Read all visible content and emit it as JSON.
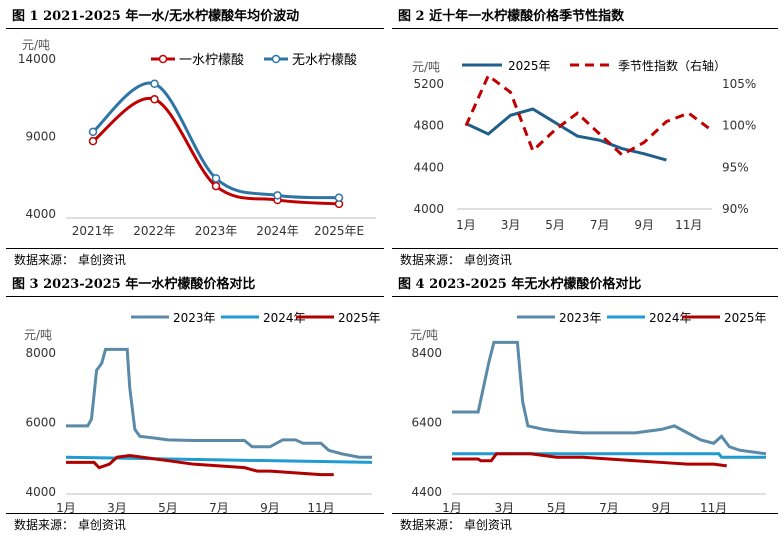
{
  "panels": [
    {
      "title": "图 1  2021-2025 年一水/无水柠檬酸年均价波动",
      "source": "数据来源：  卓创资讯"
    },
    {
      "title": "图 2  近十年一水柠檬酸价格季节性指数",
      "source": "数据来源：  卓创资讯"
    },
    {
      "title": "图 3  2023-2025 年一水柠檬酸价格对比",
      "source": "数据来源：  卓创资讯"
    },
    {
      "title": "图 4  2023-2025 年无水柠檬酸价格对比",
      "source": "数据来源：  卓创资讯"
    }
  ],
  "colors": {
    "red": "#c00000",
    "blue": "#2e75a6",
    "steel": "#5b8aa8",
    "cyan": "#1f9bd1",
    "dred": "#b00000"
  },
  "chart_data": [
    {
      "type": "line",
      "unit_label": "元/吨",
      "categories": [
        "2021年",
        "2022年",
        "2023年",
        "2024年",
        "2025年E"
      ],
      "series": [
        {
          "name": "一水柠檬酸",
          "values": [
            8700,
            11400,
            5800,
            4900,
            4650
          ],
          "color": "#c00000"
        },
        {
          "name": "无水柠檬酸",
          "values": [
            9300,
            12400,
            6300,
            5200,
            5050
          ],
          "color": "#2e75a6"
        }
      ],
      "yticks": [
        4000,
        9000,
        14000
      ],
      "ytick_labels": [
        "4000",
        "9000",
        "14000"
      ],
      "ylim": [
        4000,
        14000
      ],
      "legend": "top-right"
    },
    {
      "type": "line",
      "unit_label": "元/吨",
      "categories": [
        "1月",
        "2月",
        "3月",
        "4月",
        "5月",
        "6月",
        "7月",
        "8月",
        "9月",
        "10月",
        "11月",
        "12月"
      ],
      "xtick_labels": [
        "1月",
        "3月",
        "5月",
        "7月",
        "9月",
        "11月"
      ],
      "series": [
        {
          "name": "2025年",
          "axis": "left",
          "values": [
            4820,
            4720,
            4900,
            4960,
            4830,
            4700,
            4660,
            4580,
            4530,
            4470,
            null,
            null
          ],
          "color": "#1f5f8b"
        },
        {
          "name": "季节性指数（右轴）",
          "axis": "right",
          "values": [
            100,
            106,
            104,
            97,
            99.5,
            101.5,
            99,
            96.5,
            98,
            100.5,
            101.5,
            99.5
          ],
          "color": "#c00000",
          "dash": true
        }
      ],
      "yticks_left": [
        4000,
        4400,
        4800,
        5200
      ],
      "yticks_right": [
        90,
        95,
        100,
        105
      ],
      "ytick_right_labels": [
        "90%",
        "95%",
        "100%",
        "105%"
      ],
      "ylim_left": [
        4000,
        5200
      ],
      "ylim_right": [
        90,
        105
      ],
      "legend": "top"
    },
    {
      "type": "line",
      "unit_label": "元/吨",
      "xtick_labels": [
        "1月",
        "3月",
        "5月",
        "7月",
        "9月",
        "11月"
      ],
      "series": [
        {
          "name": "2023年",
          "color": "#5b8aa8",
          "values": [
            [
              1,
              5900
            ],
            [
              1.85,
              5900
            ],
            [
              2,
              6100
            ],
            [
              2.1,
              6800
            ],
            [
              2.2,
              7500
            ],
            [
              2.4,
              7700
            ],
            [
              2.55,
              8100
            ],
            [
              3.4,
              8100
            ],
            [
              3.5,
              7000
            ],
            [
              3.7,
              5800
            ],
            [
              3.9,
              5600
            ],
            [
              4.5,
              5550
            ],
            [
              5,
              5500
            ],
            [
              6,
              5480
            ],
            [
              7,
              5480
            ],
            [
              8,
              5480
            ],
            [
              8.3,
              5300
            ],
            [
              9,
              5300
            ],
            [
              9.5,
              5500
            ],
            [
              10,
              5500
            ],
            [
              10.3,
              5400
            ],
            [
              11,
              5400
            ],
            [
              11.3,
              5200
            ],
            [
              11.8,
              5100
            ],
            [
              12.5,
              5000
            ],
            [
              13,
              5000
            ]
          ]
        },
        {
          "name": "2024年",
          "color": "#1f9bd1",
          "values": [
            [
              1,
              5000
            ],
            [
              13,
              4850
            ]
          ]
        },
        {
          "name": "2025年",
          "color": "#b00000",
          "values": [
            [
              1,
              4850
            ],
            [
              2.1,
              4850
            ],
            [
              2.3,
              4700
            ],
            [
              2.7,
              4800
            ],
            [
              3,
              5000
            ],
            [
              3.5,
              5050
            ],
            [
              4,
              5000
            ],
            [
              5,
              4900
            ],
            [
              6,
              4800
            ],
            [
              7,
              4750
            ],
            [
              8,
              4700
            ],
            [
              8.5,
              4600
            ],
            [
              9,
              4600
            ],
            [
              10,
              4550
            ],
            [
              11,
              4500
            ],
            [
              11.5,
              4500
            ]
          ]
        }
      ],
      "yticks": [
        4000,
        6000,
        8000
      ],
      "ylim": [
        4000,
        8600
      ],
      "xlim": [
        1,
        13
      ],
      "legend": "top"
    },
    {
      "type": "line",
      "unit_label": "元/吨",
      "xtick_labels": [
        "1月",
        "3月",
        "5月",
        "7月",
        "9月",
        "11月"
      ],
      "series": [
        {
          "name": "2023年",
          "color": "#5b8aa8",
          "values": [
            [
              1,
              6700
            ],
            [
              2,
              6700
            ],
            [
              2.2,
              7400
            ],
            [
              2.4,
              8100
            ],
            [
              2.6,
              8700
            ],
            [
              3.5,
              8700
            ],
            [
              3.7,
              7000
            ],
            [
              3.9,
              6300
            ],
            [
              4.5,
              6200
            ],
            [
              5,
              6150
            ],
            [
              6,
              6100
            ],
            [
              7,
              6100
            ],
            [
              8,
              6100
            ],
            [
              9,
              6200
            ],
            [
              9.5,
              6300
            ],
            [
              10,
              6100
            ],
            [
              10.5,
              5900
            ],
            [
              11,
              5800
            ],
            [
              11.3,
              6000
            ],
            [
              11.6,
              5700
            ],
            [
              12,
              5600
            ],
            [
              13,
              5500
            ]
          ]
        },
        {
          "name": "2024年",
          "color": "#1f9bd1",
          "values": [
            [
              1,
              5500
            ],
            [
              11.2,
              5500
            ],
            [
              11.3,
              5400
            ],
            [
              13,
              5400
            ]
          ]
        },
        {
          "name": "2025年",
          "color": "#b00000",
          "values": [
            [
              1,
              5350
            ],
            [
              2,
              5350
            ],
            [
              2.1,
              5300
            ],
            [
              2.5,
              5300
            ],
            [
              2.7,
              5500
            ],
            [
              3,
              5500
            ],
            [
              4,
              5500
            ],
            [
              5,
              5400
            ],
            [
              6,
              5400
            ],
            [
              7,
              5350
            ],
            [
              8,
              5300
            ],
            [
              9,
              5250
            ],
            [
              10,
              5200
            ],
            [
              11,
              5200
            ],
            [
              11.5,
              5150
            ]
          ]
        }
      ],
      "yticks": [
        4400,
        6400,
        8400
      ],
      "ytick_labels": [
        "4400",
        "6400",
        "8400"
      ],
      "ylim": [
        4400,
        9000
      ],
      "xlim": [
        1,
        13
      ],
      "legend": "top"
    }
  ]
}
